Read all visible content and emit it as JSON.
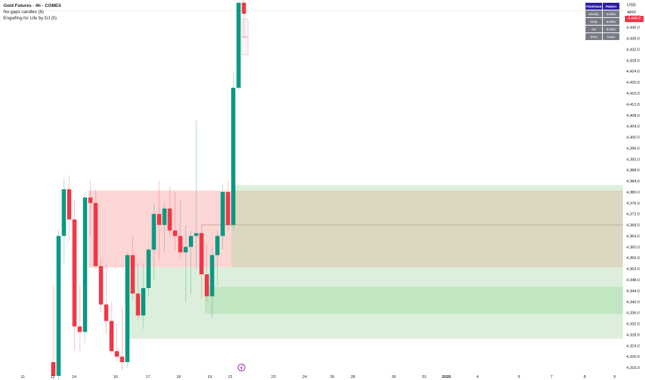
{
  "legend": {
    "title": "Gold Futures · 4h · COMEX",
    "line2": "No gaps candles (6)",
    "line3": "Engulfing for Life by DJ (5)"
  },
  "currency": "USD",
  "user": "apoz",
  "pattern_table": {
    "headers": [
      "Timeframe",
      "Pattern"
    ],
    "rows": [
      [
        "Weekly",
        "Bullish"
      ],
      [
        "Daily",
        "Bullish"
      ],
      [
        "1W",
        "Bullish"
      ],
      [
        "4h30",
        "Noise"
      ]
    ]
  },
  "colors": {
    "up": "#089981",
    "down": "#f23645",
    "red_zone": "#fcd5d5",
    "green_zone": "#dcefdc",
    "green_zone_dark": "#c2e6c2",
    "olive_zone": "#ddd6c1"
  },
  "chart_data": {
    "type": "candlestick",
    "ylim": [
      4314,
      4450
    ],
    "y_ticks": [
      "4,444.0",
      "4,440.0",
      "4,436.0",
      "4,432.0",
      "4,428.0",
      "4,424.0",
      "4,420.0",
      "4,416.0",
      "4,412.0",
      "4,408.0",
      "4,404.0",
      "4,400.0",
      "4,396.0",
      "4,392.0",
      "4,388.0",
      "4,384.0",
      "4,380.0",
      "4,376.0",
      "4,372.0",
      "4,368.0",
      "4,364.0",
      "4,360.0",
      "4,356.0",
      "4,352.0",
      "4,348.0",
      "4,344.0",
      "4,340.0",
      "4,336.0",
      "4,332.0",
      "4,328.0",
      "4,324.0",
      "4,320.0",
      "4,316.0"
    ],
    "x_ticks": [
      "11",
      "12",
      "14",
      "16",
      "17",
      "18",
      "19",
      "21",
      "23",
      "24",
      "26",
      "28",
      "30",
      "31",
      "2026",
      "4",
      "6",
      "7",
      "8",
      "9"
    ],
    "candles": [
      [
        4318,
        4346,
        4308,
        4313
      ],
      [
        4313,
        4366,
        4308,
        4364
      ],
      [
        4364,
        4385,
        4354,
        4381
      ],
      [
        4381,
        4386,
        4362,
        4370
      ],
      [
        4370,
        4377,
        4322,
        4331
      ],
      [
        4331,
        4346,
        4322,
        4329
      ],
      [
        4329,
        4380,
        4325,
        4378
      ],
      [
        4378,
        4384,
        4364,
        4376
      ],
      [
        4376,
        4381,
        4352,
        4353
      ],
      [
        4353,
        4356,
        4336,
        4339
      ],
      [
        4339,
        4354,
        4328,
        4333
      ],
      [
        4333,
        4340,
        4321,
        4322
      ],
      [
        4322,
        4332,
        4318,
        4320
      ],
      [
        4320,
        4338,
        4315,
        4318
      ],
      [
        4318,
        4358,
        4316,
        4357
      ],
      [
        4357,
        4364,
        4341,
        4343
      ],
      [
        4343,
        4354,
        4333,
        4335
      ],
      [
        4335,
        4354,
        4330,
        4345
      ],
      [
        4345,
        4360,
        4342,
        4359
      ],
      [
        4359,
        4376,
        4348,
        4372
      ],
      [
        4372,
        4384,
        4355,
        4368
      ],
      [
        4368,
        4376,
        4358,
        4374
      ],
      [
        4374,
        4382,
        4364,
        4366
      ],
      [
        4366,
        4380,
        4359,
        4364
      ],
      [
        4364,
        4377,
        4356,
        4358
      ],
      [
        4358,
        4368,
        4340,
        4360
      ],
      [
        4360,
        4366,
        4343,
        4364
      ],
      [
        4364,
        4406,
        4352,
        4365
      ],
      [
        4365,
        4368,
        4341,
        4350
      ],
      [
        4350,
        4361,
        4340,
        4342
      ],
      [
        4342,
        4360,
        4334,
        4357
      ],
      [
        4357,
        4366,
        4346,
        4364
      ],
      [
        4364,
        4383,
        4359,
        4380
      ],
      [
        4380,
        4384,
        4366,
        4368
      ],
      [
        4368,
        4424,
        4366,
        4418
      ],
      [
        4418,
        4449,
        4417,
        4449
      ],
      [
        4449,
        4451,
        4436,
        4445
      ]
    ],
    "zones": [
      {
        "from_candle": 7,
        "to_candle": 34,
        "top": 4380.5,
        "bottom": 4352.5
      },
      {
        "from_candle": 14,
        "to_candle": "end",
        "top": 4352.5,
        "bottom": 4326.5
      },
      {
        "from_candle": 29,
        "to_candle": "end",
        "top": 4345.5,
        "bottom": 4335.5
      },
      {
        "from_candle": 34,
        "to_candle": "end",
        "top": 4382.5,
        "bottom": 4380.5
      },
      {
        "from_candle": 34,
        "to_candle": "end",
        "top": 4380.5,
        "bottom": 4352.5
      }
    ],
    "ghost_box": {
      "top": 4443,
      "bottom": 4430,
      "mid": 4436.5
    },
    "horizontal_line": 4368,
    "last_price_line": 4446
  }
}
